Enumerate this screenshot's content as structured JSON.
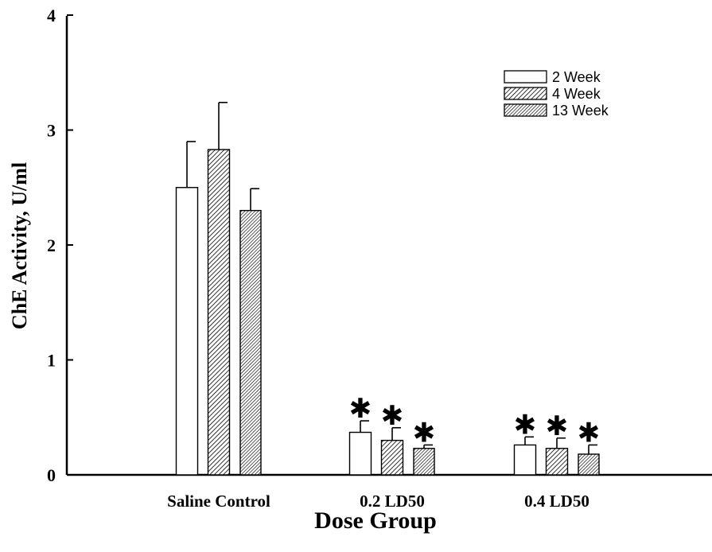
{
  "chart_data": {
    "type": "bar",
    "title": "",
    "xlabel": "Dose Group",
    "ylabel": "ChE Activity, U/ml",
    "ylim": [
      0,
      4
    ],
    "yticks": [
      0,
      1,
      2,
      3,
      4
    ],
    "categories": [
      "Saline Control",
      "0.2 LD50",
      "0.4 LD50"
    ],
    "series": [
      {
        "name": "2 Week",
        "pattern": "open",
        "values": [
          2.5,
          0.37,
          0.26
        ],
        "errors": [
          0.4,
          0.1,
          0.07
        ],
        "significant": [
          false,
          true,
          true
        ]
      },
      {
        "name": "4 Week",
        "pattern": "hatch-coarse",
        "values": [
          2.83,
          0.3,
          0.23
        ],
        "errors": [
          0.41,
          0.11,
          0.09
        ],
        "significant": [
          false,
          true,
          true
        ]
      },
      {
        "name": "13 Week",
        "pattern": "hatch-fine",
        "values": [
          2.3,
          0.23,
          0.18
        ],
        "errors": [
          0.19,
          0.03,
          0.08
        ],
        "significant": [
          false,
          true,
          true
        ]
      }
    ],
    "significance_marker": "✱",
    "legend_position": "top-right",
    "grid": false,
    "colors": {
      "axis": "#000000",
      "bar_fill": "#ffffff",
      "hatch": "#000000"
    }
  }
}
